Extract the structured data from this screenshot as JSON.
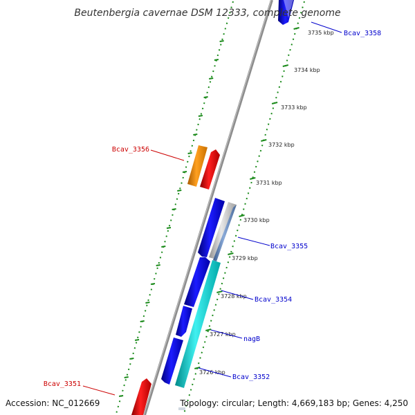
{
  "title": "Beutenbergia cavernae DSM 12333, complete genome",
  "footer": {
    "accession": "Accession: NC_012669",
    "summary": "Topology: circular; Length: 4,669,183 bp; Genes: 4,250"
  },
  "ticks": [
    "3735 kbp",
    "3734 kbp",
    "3733 kbp",
    "3732 kbp",
    "3731 kbp",
    "3730 kbp",
    "3729 kbp",
    "3728 kbp",
    "3727 kbp",
    "3726 kbp"
  ],
  "genes": [
    {
      "label": "Bcav_3358",
      "color": "#0000cc",
      "strand": "forward"
    },
    {
      "label": "Bcav_3356",
      "color": "#cc0000",
      "strand": "reverse"
    },
    {
      "label": "Bcav_3355",
      "color": "#0000cc",
      "strand": "forward"
    },
    {
      "label": "Bcav_3354",
      "color": "#0000cc",
      "strand": "forward"
    },
    {
      "label": "nagB",
      "color": "#0000cc",
      "strand": "forward"
    },
    {
      "label": "Bcav_3352",
      "color": "#0000cc",
      "strand": "forward"
    },
    {
      "label": "Bcav_3351",
      "color": "#cc0000",
      "strand": "reverse"
    }
  ],
  "colors": {
    "forward_cds": "#1010e0",
    "reverse_cds": "#e00000",
    "orange_feature": "#f08c00",
    "cyan_feature": "#18c8c8",
    "grey_feature": "#b8b8b8",
    "backbone": "#8c8c8c",
    "tick_ring": "#1a8a1a"
  }
}
